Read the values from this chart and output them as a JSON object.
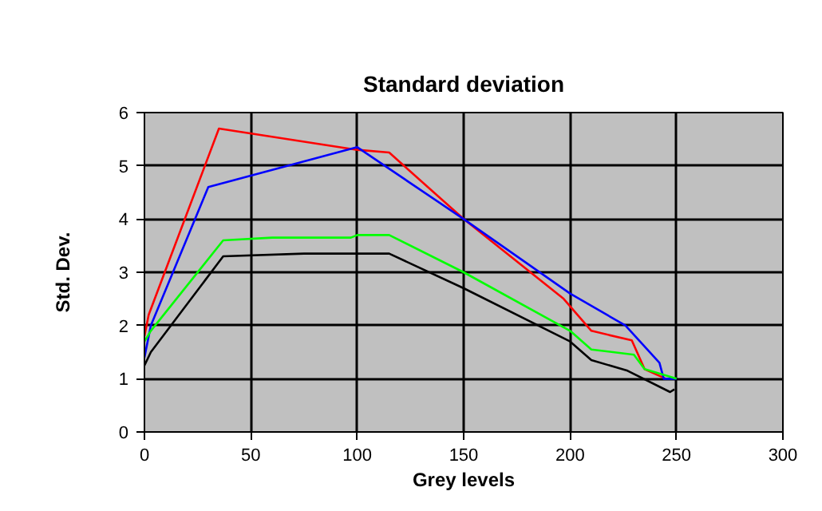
{
  "chart_data": {
    "type": "line",
    "title": "Standard deviation",
    "xlabel": "Grey levels",
    "ylabel": "Std. Dev.",
    "xlim": [
      0,
      300
    ],
    "xticks": [
      0,
      50,
      100,
      150,
      200,
      250,
      300
    ],
    "ylim": [
      0,
      6
    ],
    "yticks": [
      0,
      1,
      2,
      3,
      4,
      5,
      6
    ],
    "grid": true,
    "marker": "none",
    "line_style": "solid",
    "series": [
      {
        "color": "#ff0000",
        "x": [
          0,
          2,
          35,
          100,
          115,
          150,
          197,
          210,
          229,
          235,
          245
        ],
        "values": [
          1.8,
          2.2,
          5.7,
          5.3,
          5.25,
          4.0,
          2.5,
          1.9,
          1.72,
          1.18,
          1.0
        ]
      },
      {
        "color": "#0000ff",
        "x": [
          0,
          3,
          30,
          100,
          150,
          200,
          226,
          242,
          244,
          250
        ],
        "values": [
          1.4,
          2.0,
          4.6,
          5.35,
          4.0,
          2.6,
          2.0,
          1.3,
          1.0,
          1.0
        ]
      },
      {
        "color": "#00ff00",
        "x": [
          0,
          3,
          37,
          60,
          97,
          100,
          115,
          150,
          200,
          210,
          230,
          235,
          250
        ],
        "values": [
          1.7,
          1.9,
          3.6,
          3.65,
          3.65,
          3.7,
          3.7,
          3.0,
          1.9,
          1.55,
          1.45,
          1.18,
          1.0
        ]
      },
      {
        "color": "#000000",
        "x": [
          0,
          3,
          37,
          75,
          115,
          150,
          200,
          210,
          227,
          247,
          249
        ],
        "values": [
          1.25,
          1.5,
          3.3,
          3.35,
          3.35,
          2.7,
          1.7,
          1.35,
          1.15,
          0.75,
          0.8
        ]
      }
    ]
  }
}
